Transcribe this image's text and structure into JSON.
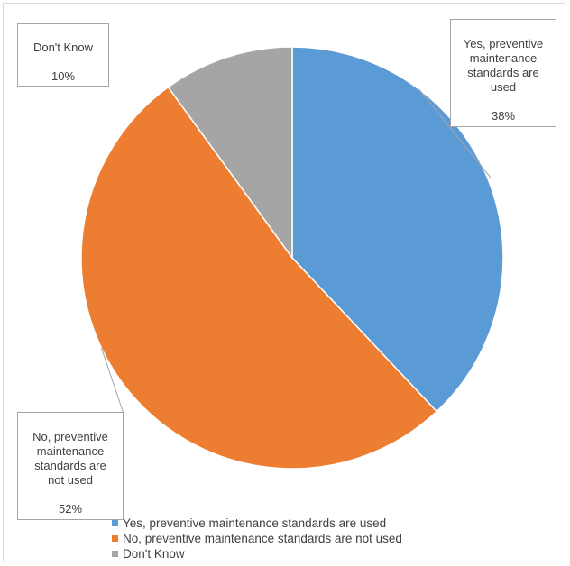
{
  "chart_data": {
    "type": "pie",
    "title": "",
    "slices": [
      {
        "label": "Yes, preventive maintenance standards are used",
        "callout": "Yes, preventive\nmaintenance\nstandards are\nused",
        "value": 38,
        "value_label": "38%",
        "color": "#5b9bd5"
      },
      {
        "label": "No, preventive maintenance standards are not used",
        "callout": "No, preventive\nmaintenance\nstandards are\nnot used",
        "value": 52,
        "value_label": "52%",
        "color": "#ed7d31"
      },
      {
        "label": "Don't Know",
        "callout": "Don't Know",
        "value": 10,
        "value_label": "10%",
        "color": "#a5a5a5"
      }
    ],
    "legend_position": "bottom",
    "start_angle_deg": 0,
    "direction": "clockwise"
  }
}
